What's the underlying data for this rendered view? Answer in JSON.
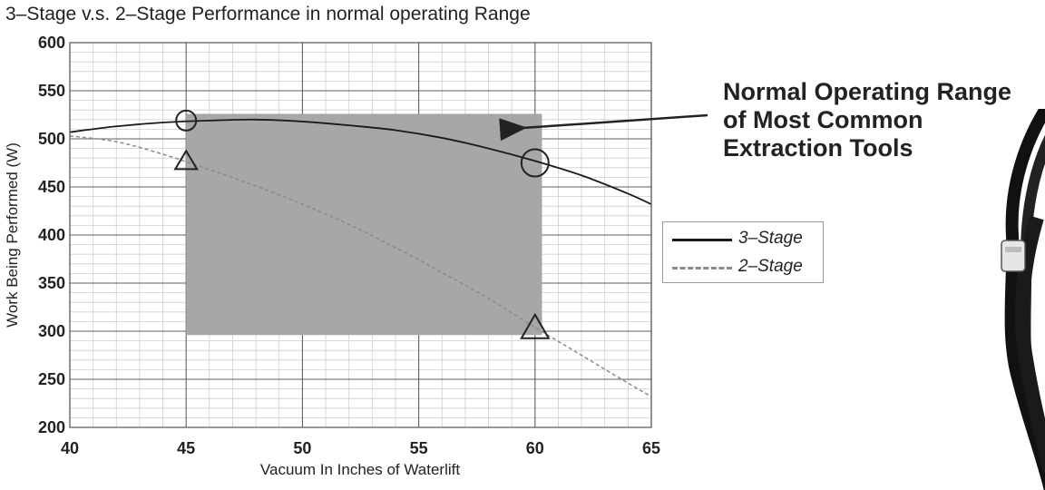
{
  "chart_data": {
    "type": "line",
    "title": "3–Stage v.s. 2–Stage Performance in normal operating Range",
    "xlabel": "Vacuum In Inches of Waterlift",
    "ylabel": "Work Being Performed (W)",
    "xlim": [
      40,
      65
    ],
    "ylim": [
      200,
      600
    ],
    "x_ticks": [
      "40",
      "45",
      "50",
      "55",
      "60",
      "65"
    ],
    "y_ticks": [
      "200",
      "250",
      "300",
      "350",
      "400",
      "450",
      "500",
      "550",
      "600"
    ],
    "grid": true,
    "legend_position": "right",
    "series": [
      {
        "name": "3–Stage",
        "style": "solid",
        "color": "#1a1a1a",
        "x": [
          40,
          42,
          44,
          46,
          48,
          50,
          52,
          54,
          56,
          58,
          60,
          62,
          64,
          65
        ],
        "y": [
          507,
          513,
          517,
          519,
          520,
          518,
          514,
          509,
          501,
          490,
          477,
          462,
          443,
          432
        ]
      },
      {
        "name": "2–Stage",
        "style": "dashed",
        "color": "#8a8a8a",
        "x": [
          40,
          42,
          44,
          46,
          48,
          50,
          52,
          54,
          56,
          58,
          60,
          62,
          64,
          65
        ],
        "y": [
          503,
          497,
          484,
          468,
          451,
          432,
          411,
          387,
          361,
          334,
          304,
          275,
          246,
          232
        ]
      }
    ],
    "shaded_region": {
      "x": [
        45,
        60.3
      ],
      "y": [
        296,
        526
      ],
      "color": "#a7a7aa"
    },
    "markers": [
      {
        "shape": "circle",
        "x": 45,
        "y": 519
      },
      {
        "shape": "circle",
        "x": 60,
        "y": 475
      },
      {
        "shape": "triangle",
        "x": 45,
        "y": 478
      },
      {
        "shape": "triangle",
        "x": 60,
        "y": 305
      }
    ],
    "annotation": {
      "lines": [
        "Normal Operating Range",
        "of Most Common",
        "Extraction Tools"
      ],
      "arrow_target": [
        58.5,
        516
      ]
    }
  }
}
